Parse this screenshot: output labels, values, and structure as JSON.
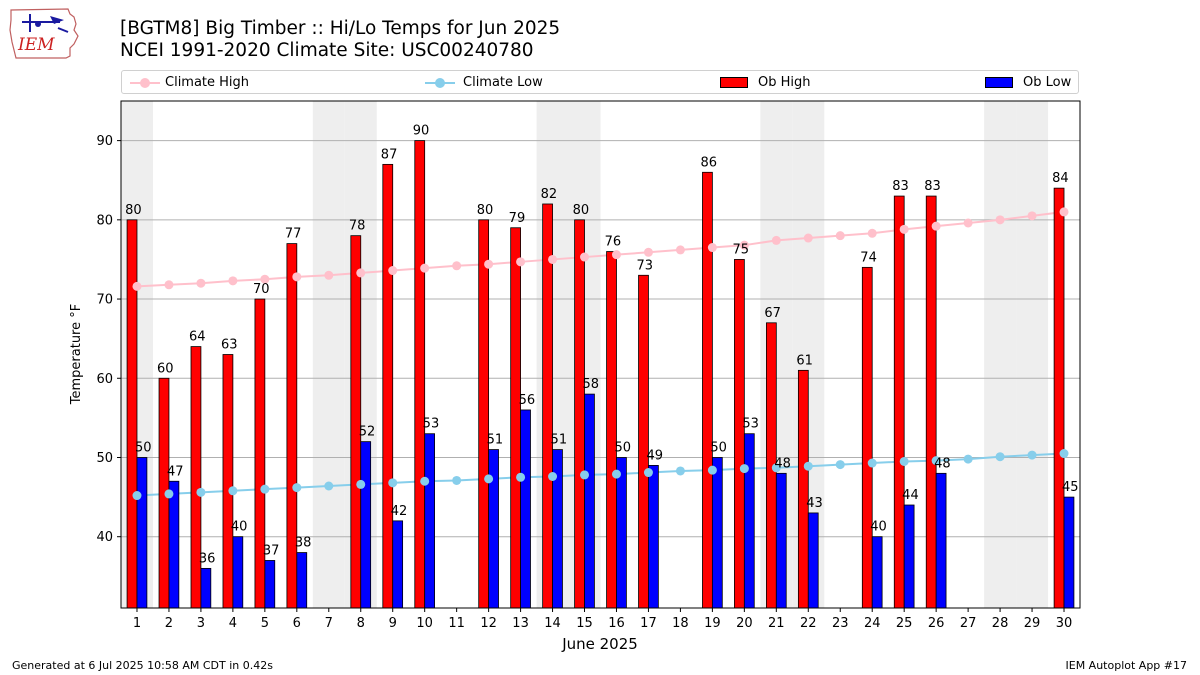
{
  "header": {
    "title_line1": "[BGTM8] Big Timber :: Hi/Lo Temps for Jun 2025",
    "title_line2": "NCEI 1991-2020 Climate Site: USC00240780"
  },
  "logo": {
    "text": "IEM"
  },
  "footer": {
    "left": "Generated at 6 Jul 2025 10:58 AM CDT in 0.42s",
    "right": "IEM Autoplot App #17"
  },
  "colors": {
    "ob_high": "#ff0000",
    "ob_low": "#0000ff",
    "climate_high": "#ffc0cb",
    "climate_low": "#87ceeb",
    "weekend_band": "#eeeeee",
    "grid": "#b0b0b0"
  },
  "chart_data": {
    "type": "bar",
    "title": "[BGTM8] Big Timber :: Hi/Lo Temps for Jun 2025",
    "subtitle": "NCEI 1991-2020 Climate Site: USC00240780",
    "xlabel": "June 2025",
    "ylabel": "Temperature °F",
    "ylim": [
      31,
      95
    ],
    "yticks": [
      40,
      50,
      60,
      70,
      80,
      90
    ],
    "grid": true,
    "legend_position": "top",
    "categories": [
      1,
      2,
      3,
      4,
      5,
      6,
      7,
      8,
      9,
      10,
      11,
      12,
      13,
      14,
      15,
      16,
      17,
      18,
      19,
      20,
      21,
      22,
      23,
      24,
      25,
      26,
      27,
      28,
      29,
      30
    ],
    "shaded_days": [
      1,
      7,
      8,
      14,
      15,
      21,
      22,
      28,
      29
    ],
    "series": [
      {
        "name": "Climate High",
        "kind": "line",
        "values": [
          71.6,
          71.8,
          72.0,
          72.3,
          72.5,
          72.8,
          73.0,
          73.3,
          73.6,
          73.9,
          74.2,
          74.4,
          74.7,
          75.0,
          75.3,
          75.6,
          75.9,
          76.2,
          76.5,
          76.8,
          77.4,
          77.7,
          78.0,
          78.3,
          78.8,
          79.2,
          79.6,
          80.0,
          80.5,
          81.0
        ]
      },
      {
        "name": "Climate Low",
        "kind": "line",
        "values": [
          45.2,
          45.4,
          45.6,
          45.8,
          46.0,
          46.2,
          46.4,
          46.6,
          46.8,
          47.0,
          47.1,
          47.3,
          47.5,
          47.6,
          47.8,
          47.9,
          48.1,
          48.3,
          48.4,
          48.6,
          48.7,
          48.9,
          49.1,
          49.3,
          49.5,
          49.6,
          49.8,
          50.1,
          50.3,
          50.5
        ]
      },
      {
        "name": "Ob High",
        "kind": "bar",
        "values": [
          80,
          60,
          64,
          63,
          70,
          77,
          null,
          78,
          87,
          90,
          null,
          80,
          79,
          82,
          80,
          76,
          73,
          null,
          86,
          75,
          67,
          61,
          null,
          74,
          83,
          83,
          null,
          null,
          null,
          84
        ]
      },
      {
        "name": "Ob Low",
        "kind": "bar",
        "values": [
          50,
          47,
          36,
          40,
          37,
          38,
          null,
          52,
          42,
          53,
          null,
          51,
          56,
          51,
          58,
          50,
          49,
          null,
          50,
          53,
          48,
          43,
          null,
          40,
          44,
          48,
          null,
          null,
          null,
          45
        ]
      }
    ]
  }
}
